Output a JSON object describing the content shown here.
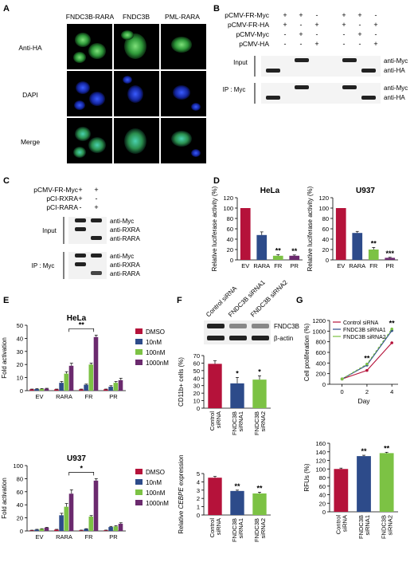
{
  "colors": {
    "red": "#b5123a",
    "blue": "#2d4b8a",
    "green": "#7cc244",
    "purple": "#6b2a6e"
  },
  "panels": {
    "A": {
      "letter": "A",
      "columns": [
        "FNDC3B-RARA",
        "FNDC3B",
        "PML-RARA"
      ],
      "rows": [
        "Anti-HA",
        "DAPI",
        "Merge"
      ]
    },
    "B": {
      "letter": "B",
      "rows": [
        "pCMV-FR-Myc",
        "pCMV-FR-HA",
        "pCMV-Myc",
        "pCMV-HA"
      ],
      "signs": [
        [
          "+",
          "+",
          "-",
          "+",
          "+",
          "-"
        ],
        [
          "+",
          "-",
          "+",
          "+",
          "-",
          "+"
        ],
        [
          "-",
          "+",
          "-",
          "-",
          "+",
          "-"
        ],
        [
          "-",
          "-",
          "+",
          "-",
          "-",
          "+"
        ]
      ],
      "input_label": "Input",
      "ip_label": "IP : Myc",
      "blot_labels": [
        "anti-Myc",
        "anti-HA",
        "anti-Myc",
        "anti-HA"
      ]
    },
    "C": {
      "letter": "C",
      "rows": [
        "pCMV-FR-Myc",
        "pCI-RXRA",
        "pCI-RARA"
      ],
      "signs": [
        [
          "+",
          "+"
        ],
        [
          "+",
          "-"
        ],
        [
          "-",
          "+"
        ]
      ],
      "input_label": "Input",
      "ip_label": "IP : Myc",
      "blot_labels": [
        "anti-Myc",
        "anti-RXRA",
        "anti-RARA",
        "anti-Myc",
        "anti-RXRA",
        "anti-RARA"
      ]
    },
    "D": {
      "letter": "D"
    },
    "E": {
      "letter": "E"
    },
    "F": {
      "letter": "F",
      "lanes": [
        "Control siRNA",
        "FNDC3B siRNA1",
        "FNDC3B siRNA2"
      ],
      "blot_labels": [
        "FNDC3B",
        "β-actin"
      ]
    },
    "G": {
      "letter": "G"
    }
  },
  "chart_data": [
    {
      "id": "D-HeLa",
      "type": "bar",
      "title": "HeLa",
      "ylabel": "Relative luciferase activity (%)",
      "ylim": [
        0,
        120
      ],
      "yticks": [
        "0",
        "20",
        "40",
        "60",
        "80",
        "100",
        "120"
      ],
      "categories": [
        "EV",
        "RARA",
        "FR",
        "PR"
      ],
      "values": [
        100,
        48,
        8,
        8
      ],
      "errors": [
        0,
        6,
        2,
        1.5
      ],
      "colors": [
        "#b5123a",
        "#2d4b8a",
        "#7cc244",
        "#6b2a6e"
      ],
      "sig": [
        "",
        "",
        "**",
        "**"
      ]
    },
    {
      "id": "D-U937",
      "type": "bar",
      "title": "U937",
      "ylabel": "Relative luciferase activity (%)",
      "ylim": [
        0,
        120
      ],
      "yticks": [
        "0",
        "20",
        "40",
        "60",
        "80",
        "100",
        "120"
      ],
      "categories": [
        "EV",
        "RARA",
        "FR",
        "PR"
      ],
      "values": [
        100,
        52,
        20,
        4
      ],
      "errors": [
        0,
        3,
        4,
        1
      ],
      "colors": [
        "#b5123a",
        "#2d4b8a",
        "#7cc244",
        "#6b2a6e"
      ],
      "sig": [
        "",
        "",
        "**",
        "***"
      ]
    },
    {
      "id": "E-HeLa",
      "type": "bar",
      "title": "HeLa",
      "ylabel": "Fold activation",
      "ylim": [
        0,
        50
      ],
      "yticks": [
        "0",
        "10",
        "20",
        "30",
        "40",
        "50"
      ],
      "categories": [
        "EV",
        "RARA",
        "FR",
        "PR"
      ],
      "series": [
        {
          "name": "DMSO",
          "values": [
            1,
            1,
            1,
            1
          ],
          "errors": [
            0.2,
            0.2,
            0.2,
            0.2
          ]
        },
        {
          "name": "10nM",
          "values": [
            1.2,
            6,
            4.5,
            3
          ],
          "errors": [
            0.3,
            1,
            0.5,
            0.8
          ]
        },
        {
          "name": "100nM",
          "values": [
            1.3,
            13,
            20,
            6
          ],
          "errors": [
            0.3,
            1.5,
            1,
            1
          ]
        },
        {
          "name": "1000nM",
          "values": [
            1.5,
            19,
            41,
            8
          ],
          "errors": [
            0.3,
            2,
            1.5,
            1.5
          ]
        }
      ],
      "legend": "right",
      "bracket": {
        "from": "RARA",
        "to": "FR",
        "label": "**"
      }
    },
    {
      "id": "E-U937",
      "type": "bar",
      "title": "U937",
      "ylabel": "Fold activation",
      "ylim": [
        0,
        100
      ],
      "yticks": [
        "0",
        "20",
        "40",
        "60",
        "80",
        "100"
      ],
      "categories": [
        "EV",
        "RARA",
        "FR",
        "PR"
      ],
      "series": [
        {
          "name": "DMSO",
          "values": [
            1,
            2,
            1,
            1
          ],
          "errors": [
            0.2,
            0.5,
            0.3,
            0.3
          ]
        },
        {
          "name": "10nM",
          "values": [
            2,
            24,
            3,
            6
          ],
          "errors": [
            0.5,
            3,
            0.5,
            1
          ]
        },
        {
          "name": "100nM",
          "values": [
            3,
            37,
            22,
            7
          ],
          "errors": [
            0.5,
            5,
            1.5,
            1
          ]
        },
        {
          "name": "1000nM",
          "values": [
            5,
            57,
            77,
            11
          ],
          "errors": [
            0.5,
            6,
            3,
            1.5
          ]
        }
      ],
      "legend": "right",
      "bracket": {
        "from": "RARA",
        "to": "FR",
        "label": "*"
      }
    },
    {
      "id": "F-CD11b",
      "type": "bar",
      "ylabel": "CD11b+ cells (%)",
      "ylim": [
        0,
        70
      ],
      "yticks": [
        "0",
        "10",
        "20",
        "30",
        "40",
        "50",
        "60",
        "70"
      ],
      "categories": [
        "Control siRNA",
        "FNDC3B siRNA1",
        "FNDC3B siRNA2"
      ],
      "values": [
        59,
        33,
        38
      ],
      "errors": [
        4,
        8,
        5
      ],
      "colors": [
        "#b5123a",
        "#2d4b8a",
        "#7cc244"
      ],
      "sig": [
        "",
        "*",
        "*"
      ]
    },
    {
      "id": "F-CEBPE",
      "type": "bar",
      "ylabel": "Relative CEBPE expression",
      "ylim": [
        0,
        5
      ],
      "yticks": [
        "0",
        "1",
        "2",
        "3",
        "4",
        "5"
      ],
      "categories": [
        "Control siRNA",
        "FNDC3B siRNA1",
        "FNDC3B siRNA2"
      ],
      "values": [
        4.5,
        2.9,
        2.6
      ],
      "errors": [
        0.15,
        0.1,
        0.15
      ],
      "colors": [
        "#b5123a",
        "#2d4b8a",
        "#7cc244"
      ],
      "sig": [
        "",
        "**",
        "**"
      ]
    },
    {
      "id": "G-prolif",
      "type": "line",
      "ylabel": "Cell proliferation (%)",
      "xlabel": "Day",
      "ylim": [
        0,
        1200
      ],
      "yticks": [
        "0",
        "200",
        "400",
        "600",
        "800",
        "1000",
        "1200"
      ],
      "x": [
        0,
        2,
        4
      ],
      "xticks": [
        "0",
        "2",
        "4"
      ],
      "series": [
        {
          "name": "Control siRNA",
          "values": [
            100,
            260,
            780
          ],
          "color": "#b5123a"
        },
        {
          "name": "FNDC3B siRNA1",
          "values": [
            100,
            360,
            1010
          ],
          "color": "#2d4b8a"
        },
        {
          "name": "FNDC3B siRNA2",
          "values": [
            100,
            380,
            1040
          ],
          "color": "#7cc244"
        }
      ],
      "sig": [
        "",
        "**",
        "**"
      ],
      "legend": "top-left"
    },
    {
      "id": "G-RFU",
      "type": "bar",
      "ylabel": "RFUs (%)",
      "ylim": [
        0,
        160
      ],
      "yticks": [
        "0",
        "20",
        "40",
        "60",
        "80",
        "100",
        "120",
        "140",
        "160"
      ],
      "categories": [
        "Control siRNA",
        "FNDC3B siRNA1",
        "FNDC3B siRNA2"
      ],
      "values": [
        100,
        130,
        137
      ],
      "errors": [
        2,
        2,
        2
      ],
      "colors": [
        "#b5123a",
        "#2d4b8a",
        "#7cc244"
      ],
      "sig": [
        "",
        "**",
        "**"
      ]
    }
  ]
}
